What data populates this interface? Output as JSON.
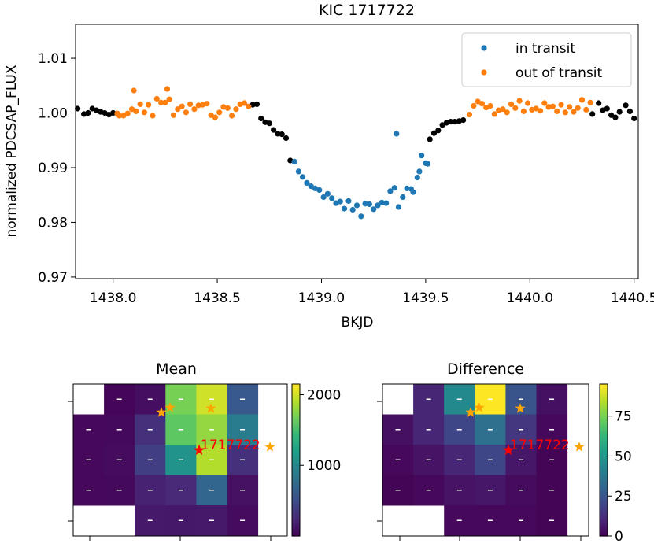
{
  "colors": {
    "in_transit": "#1f77b4",
    "out_of_transit": "#ff7f0e",
    "other": "#000000",
    "star_target": "#ff0000",
    "star_neighbor": "#ffa500",
    "viridis": [
      "#440154",
      "#482878",
      "#3e4989",
      "#31688e",
      "#26828e",
      "#1f9e89",
      "#35b779",
      "#6ece58",
      "#b5de2b",
      "#fde725"
    ]
  },
  "chart_data": [
    {
      "type": "scatter",
      "title": "KIC 1717722",
      "xlabel": "BKJD",
      "ylabel": "normalized PDCSAP_FLUX",
      "xlim": [
        1437.82,
        1440.52
      ],
      "ylim": [
        0.9697,
        1.0162
      ],
      "xticks": [
        1438.0,
        1438.5,
        1439.0,
        1439.5,
        1440.0,
        1440.5
      ],
      "xtick_labels": [
        "1438.0",
        "1438.5",
        "1439.0",
        "1439.5",
        "1440.0",
        "1440.5"
      ],
      "yticks": [
        0.97,
        0.98,
        0.99,
        1.0,
        1.01
      ],
      "ytick_labels": [
        "0.97",
        "0.98",
        "0.99",
        "1.00",
        "1.01"
      ],
      "legend": {
        "position": "top-right",
        "entries": [
          "in transit",
          "out of transit"
        ]
      },
      "series": [
        {
          "name": "black",
          "color_key": "other",
          "x": [
            1437.83,
            1437.86,
            1437.88,
            1437.9,
            1437.92,
            1437.94,
            1437.96,
            1437.98,
            1438.0,
            1438.67,
            1438.69,
            1438.71,
            1438.73,
            1438.75,
            1438.77,
            1438.79,
            1438.81,
            1438.83,
            1438.85,
            1439.52,
            1439.54,
            1439.56,
            1439.58,
            1439.6,
            1439.62,
            1439.64,
            1439.66,
            1439.68,
            1440.3,
            1440.33,
            1440.35,
            1440.37,
            1440.39,
            1440.41,
            1440.43,
            1440.46,
            1440.48,
            1440.5
          ],
          "y": [
            1.0008,
            0.9998,
            1.0,
            1.0008,
            1.0005,
            1.0002,
            1.0,
            0.9997,
            1.0,
            1.0015,
            1.0016,
            0.999,
            0.9983,
            0.9981,
            0.9969,
            0.9962,
            0.9961,
            0.9954,
            0.9913,
            0.9952,
            0.9963,
            0.9968,
            0.9978,
            0.9982,
            0.9984,
            0.9984,
            0.9985,
            0.9987,
            0.9998,
            1.0018,
            1.0005,
            1.0008,
            0.9996,
            0.9992,
            1.0002,
            1.0014,
            1.0003,
            0.999
          ]
        },
        {
          "name": "in transit",
          "color_key": "in_transit",
          "x": [
            1438.87,
            1438.89,
            1438.91,
            1438.93,
            1438.95,
            1438.97,
            1438.99,
            1439.01,
            1439.03,
            1439.05,
            1439.07,
            1439.09,
            1439.11,
            1439.13,
            1439.15,
            1439.17,
            1439.19,
            1439.21,
            1439.23,
            1439.25,
            1439.27,
            1439.29,
            1439.31,
            1439.33,
            1439.35,
            1439.36,
            1439.37,
            1439.39,
            1439.41,
            1439.43,
            1439.44,
            1439.46,
            1439.47,
            1439.48,
            1439.5,
            1439.51
          ],
          "y": [
            0.9911,
            0.9893,
            0.9883,
            0.9872,
            0.9866,
            0.9862,
            0.9859,
            0.9846,
            0.9852,
            0.9844,
            0.9835,
            0.9838,
            0.9825,
            0.9839,
            0.9823,
            0.9831,
            0.9811,
            0.9834,
            0.9833,
            0.9824,
            0.9831,
            0.9836,
            0.9835,
            0.9857,
            0.9863,
            0.9962,
            0.9828,
            0.9846,
            0.9862,
            0.9861,
            0.9855,
            0.9882,
            0.9893,
            0.9922,
            0.9908,
            0.9907
          ]
        },
        {
          "name": "out of transit",
          "color_key": "out_of_transit",
          "x": [
            1438.02,
            1438.03,
            1438.05,
            1438.07,
            1438.09,
            1438.1,
            1438.11,
            1438.13,
            1438.15,
            1438.17,
            1438.19,
            1438.21,
            1438.23,
            1438.25,
            1438.26,
            1438.27,
            1438.29,
            1438.31,
            1438.33,
            1438.35,
            1438.37,
            1438.39,
            1438.41,
            1438.43,
            1438.45,
            1438.47,
            1438.49,
            1438.51,
            1438.53,
            1438.55,
            1438.57,
            1438.59,
            1438.61,
            1438.63,
            1438.65,
            1439.71,
            1439.73,
            1439.75,
            1439.77,
            1439.79,
            1439.81,
            1439.83,
            1439.85,
            1439.87,
            1439.89,
            1439.91,
            1439.93,
            1439.95,
            1439.97,
            1439.99,
            1440.01,
            1440.03,
            1440.05,
            1440.07,
            1440.09,
            1440.11,
            1440.13,
            1440.15,
            1440.17,
            1440.19,
            1440.21,
            1440.23,
            1440.25,
            1440.27,
            1440.29
          ],
          "y": [
            0.9999,
            0.9995,
            0.9995,
            0.9999,
            1.0007,
            1.0041,
            1.0003,
            1.0016,
            1.0001,
            1.0015,
            0.9995,
            1.0026,
            1.0019,
            1.0019,
            1.0044,
            1.0025,
            0.9996,
            1.0007,
            1.0012,
            1.0001,
            1.0016,
            1.0007,
            1.0014,
            1.0015,
            1.0017,
            0.9996,
            0.9992,
            1.0001,
            1.0011,
            1.0009,
            0.9995,
            1.0007,
            1.0016,
            1.0018,
            1.0012,
            0.9997,
            1.0013,
            1.0021,
            1.0017,
            1.001,
            1.0013,
            0.9998,
            1.0005,
            1.0007,
            1.0001,
            1.0016,
            1.0009,
            1.0022,
            1.0003,
            1.0018,
            1.0006,
            1.0008,
            1.0004,
            1.0018,
            1.0011,
            1.0012,
            1.0003,
            1.0015,
            1.0001,
            1.0011,
            1.0002,
            1.0009,
            1.0024,
            1.0006,
            1.0019
          ]
        }
      ]
    },
    {
      "type": "heatmap",
      "title": "Mean",
      "colorbar_max": 2150,
      "colorbar_ticks": [
        1000,
        2000
      ],
      "colorbar_tick_labels": [
        "1000",
        "2000"
      ],
      "cells": [
        [
          null,
          30,
          80,
          1700,
          2000,
          600,
          null
        ],
        [
          40,
          50,
          300,
          1600,
          1800,
          900,
          null
        ],
        [
          40,
          60,
          400,
          1100,
          1900,
          300,
          null
        ],
        [
          40,
          50,
          200,
          250,
          700,
          100,
          null
        ],
        [
          null,
          null,
          150,
          140,
          150,
          60,
          null
        ]
      ],
      "target_label": "1717722"
    },
    {
      "type": "heatmap",
      "title": "Difference",
      "colorbar_max": 95,
      "colorbar_ticks": [
        0,
        25,
        50,
        75
      ],
      "colorbar_tick_labels": [
        "0",
        "25",
        "50",
        "75"
      ],
      "cells": [
        [
          null,
          10,
          45,
          95,
          25,
          4,
          null
        ],
        [
          4,
          10,
          20,
          35,
          15,
          2,
          null
        ],
        [
          2,
          5,
          10,
          20,
          6,
          1,
          null
        ],
        [
          1,
          2,
          5,
          6,
          3,
          1,
          null
        ],
        [
          null,
          null,
          2,
          2,
          2,
          1,
          null
        ]
      ],
      "target_label": "1717722"
    }
  ]
}
